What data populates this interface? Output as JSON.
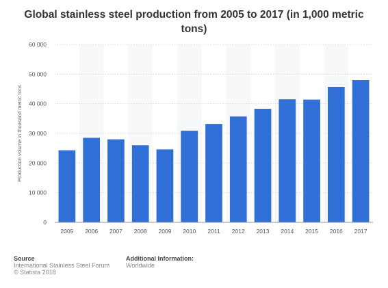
{
  "chart_data": {
    "type": "bar",
    "title": "Global stainless steel production from 2005 to 2017 (in 1,000 metric tons)",
    "ylabel": "Production volume in thousand metric tons",
    "xlabel": "",
    "categories": [
      "2005",
      "2006",
      "2007",
      "2008",
      "2009",
      "2010",
      "2011",
      "2012",
      "2013",
      "2014",
      "2015",
      "2016",
      "2017"
    ],
    "values": [
      24300,
      28500,
      28000,
      26000,
      24600,
      30900,
      33200,
      35700,
      38300,
      41500,
      41400,
      45700,
      48000
    ],
    "ylim": [
      0,
      60000
    ],
    "yticks": [
      0,
      10000,
      20000,
      30000,
      40000,
      50000,
      60000
    ],
    "ytick_labels": [
      "0",
      "10 000",
      "20 000",
      "30 000",
      "40 000",
      "50 000",
      "60 000"
    ],
    "grid": true,
    "bar_color": "#2f6fd6"
  },
  "footer": {
    "source_heading": "Source",
    "source_line1": "International Stainless Steel Forum",
    "source_line2": "© Statista 2018",
    "info_heading": "Additional Information:",
    "info_line1": "Worldwide"
  }
}
